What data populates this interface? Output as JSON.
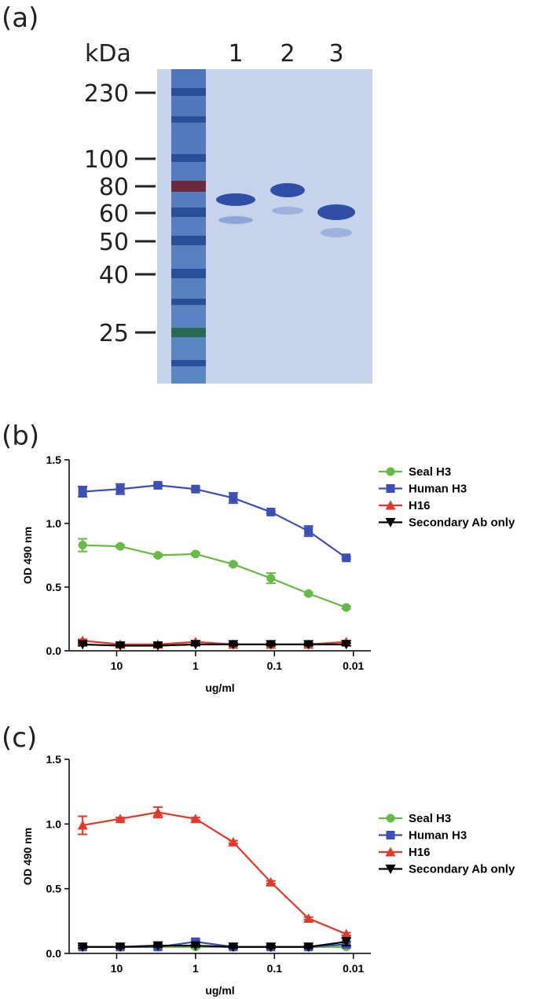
{
  "gel": {
    "panel_label": "(a)",
    "unit_label": "kDa",
    "lanes": [
      "1",
      "2",
      "3"
    ],
    "markers": [
      230,
      100,
      80,
      60,
      50,
      40,
      25
    ]
  },
  "chart_data": [
    {
      "type": "line",
      "panel_label": "(b)",
      "xlabel": "ug/ml",
      "ylabel": "OD 490 nm",
      "x": [
        27,
        9,
        3,
        1,
        0.333,
        0.111,
        0.037,
        0.0123
      ],
      "xscale": "log",
      "xlim": [
        40,
        0.006
      ],
      "xticks": [
        10,
        1,
        0.1,
        0.01
      ],
      "ylim": [
        0,
        1.5
      ],
      "yticks": [
        {
          "value": 0,
          "label": "0.0"
        },
        0.5,
        {
          "value": 1,
          "label": "1.0"
        },
        1.5
      ],
      "legend": "right",
      "series": [
        {
          "name": "Seal H3",
          "color": "#66bb44",
          "marker": "circle",
          "values": [
            0.83,
            0.82,
            0.75,
            0.76,
            0.68,
            0.57,
            0.45,
            0.34
          ],
          "errors": [
            0.05,
            0.01,
            0.01,
            0.01,
            0.01,
            0.04,
            0.01,
            0.01
          ]
        },
        {
          "name": "Human H3",
          "color": "#3c4fb4",
          "marker": "square",
          "values": [
            1.25,
            1.27,
            1.3,
            1.27,
            1.2,
            1.09,
            0.94,
            0.73
          ],
          "errors": [
            0.04,
            0.04,
            0.01,
            0.01,
            0.04,
            0.01,
            0.04,
            0.01
          ]
        },
        {
          "name": "H16",
          "color": "#e23a2a",
          "marker": "triangle-up",
          "values": [
            0.08,
            0.05,
            0.05,
            0.07,
            0.05,
            0.05,
            0.05,
            0.07
          ],
          "errors": [
            0.01,
            0.01,
            0.01,
            0.01,
            0.01,
            0.01,
            0.01,
            0.01
          ]
        },
        {
          "name": "Secondary Ab only",
          "color": "#000000",
          "marker": "triangle-down",
          "values": [
            0.05,
            0.04,
            0.04,
            0.05,
            0.05,
            0.05,
            0.05,
            0.05
          ],
          "errors": [
            0.01,
            0.01,
            0.01,
            0.01,
            0.01,
            0.01,
            0.01,
            0.01
          ]
        }
      ]
    },
    {
      "type": "line",
      "panel_label": "(c)",
      "xlabel": "ug/ml",
      "ylabel": "OD 490 nm",
      "x": [
        27,
        9,
        3,
        1,
        0.333,
        0.111,
        0.037,
        0.0123
      ],
      "xscale": "log",
      "xlim": [
        40,
        0.006
      ],
      "xticks": [
        10,
        1,
        0.1,
        0.01
      ],
      "ylim": [
        0,
        1.5
      ],
      "yticks": [
        {
          "value": 0,
          "label": "0.0"
        },
        0.5,
        {
          "value": 1,
          "label": "1.0"
        },
        1.5
      ],
      "legend": "right",
      "series": [
        {
          "name": "Seal H3",
          "color": "#66bb44",
          "marker": "circle",
          "values": [
            0.05,
            0.05,
            0.05,
            0.05,
            0.05,
            0.05,
            0.05,
            0.05
          ],
          "errors": [
            0.01,
            0.01,
            0.01,
            0.01,
            0.01,
            0.01,
            0.01,
            0.01
          ]
        },
        {
          "name": "Human H3",
          "color": "#3c4fb4",
          "marker": "square",
          "values": [
            0.05,
            0.05,
            0.05,
            0.09,
            0.05,
            0.05,
            0.05,
            0.07
          ],
          "errors": [
            0.01,
            0.01,
            0.01,
            0.02,
            0.01,
            0.01,
            0.01,
            0.02
          ]
        },
        {
          "name": "H16",
          "color": "#e23a2a",
          "marker": "triangle-up",
          "values": [
            0.99,
            1.04,
            1.09,
            1.04,
            0.86,
            0.55,
            0.27,
            0.15
          ],
          "errors": [
            0.07,
            0.01,
            0.04,
            0.01,
            0.01,
            0.01,
            0.01,
            0.01
          ]
        },
        {
          "name": "Secondary Ab only",
          "color": "#000000",
          "marker": "triangle-down",
          "values": [
            0.05,
            0.05,
            0.06,
            0.06,
            0.05,
            0.05,
            0.05,
            0.09
          ],
          "errors": [
            0.01,
            0.01,
            0.01,
            0.01,
            0.01,
            0.01,
            0.01,
            0.03
          ]
        }
      ]
    }
  ]
}
